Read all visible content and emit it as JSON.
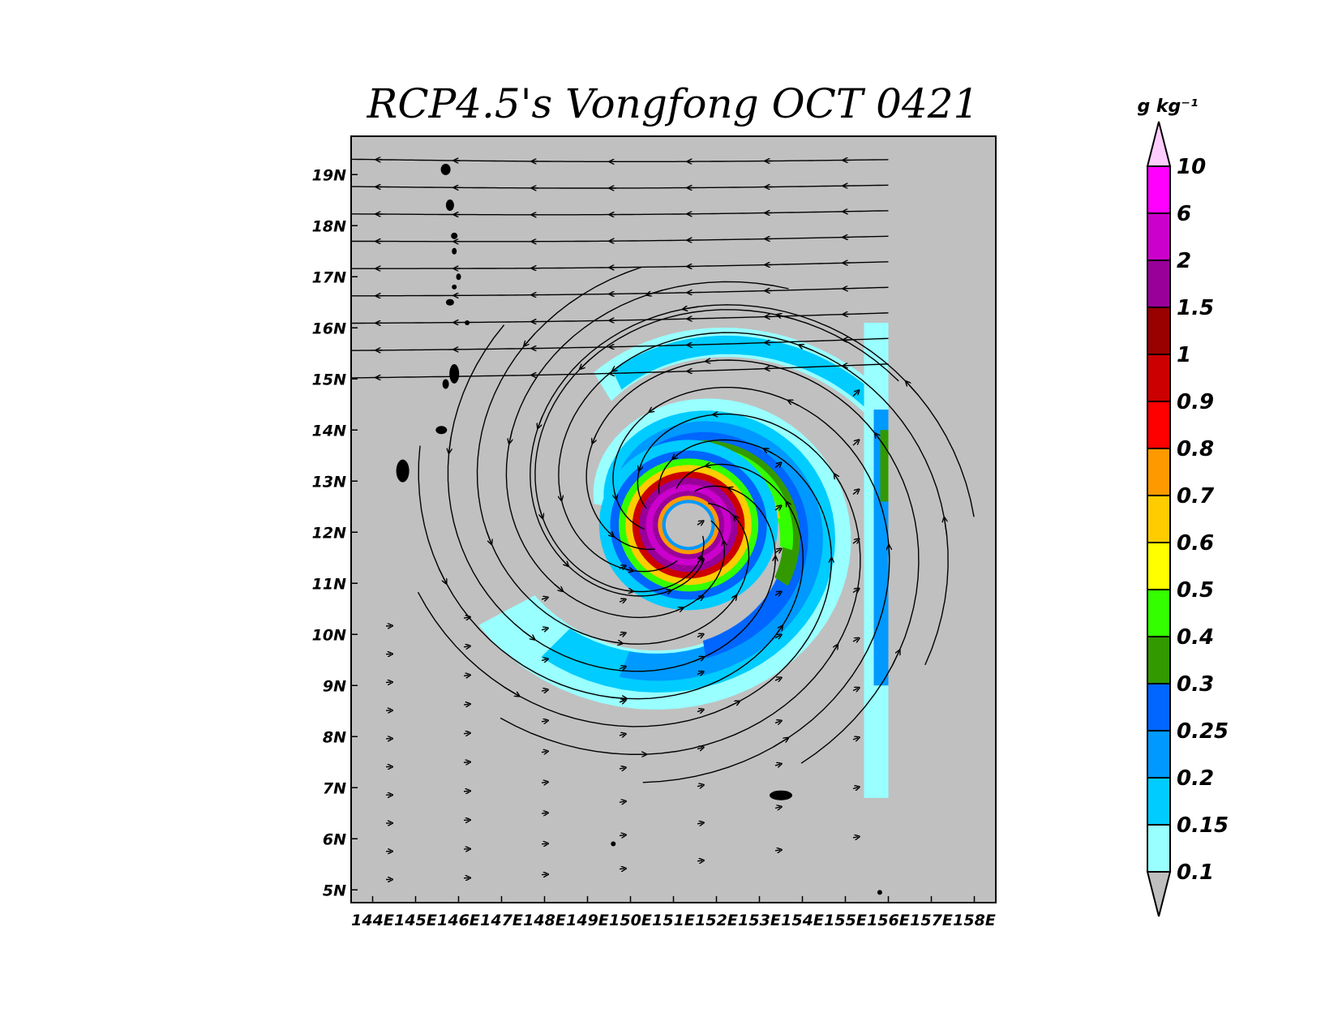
{
  "title": "RCP4.5's Vongfong OCT 0421",
  "units": "g kg⁻¹",
  "lon_ticks": [
    "144E",
    "145E",
    "146E",
    "147E",
    "148E",
    "149E",
    "150E",
    "151E",
    "152E",
    "153E",
    "154E",
    "155E",
    "156E",
    "157E",
    "158E"
  ],
  "lat_ticks": [
    "19N",
    "18N",
    "17N",
    "16N",
    "15N",
    "14N",
    "13N",
    "12N",
    "11N",
    "10N",
    "9N",
    "8N",
    "7N",
    "6N",
    "5N"
  ],
  "colorbar": {
    "labels": [
      "10",
      "6",
      "2",
      "1.5",
      "1",
      "0.9",
      "0.8",
      "0.7",
      "0.6",
      "0.5",
      "0.4",
      "0.3",
      "0.25",
      "0.2",
      "0.15",
      "0.1"
    ],
    "colors": [
      "#ff00ff",
      "#cc00cc",
      "#990099",
      "#990000",
      "#cc0000",
      "#ff0000",
      "#ff9900",
      "#ffcc00",
      "#ffff00",
      "#33ff00",
      "#339900",
      "#0066ff",
      "#0099ff",
      "#00ccff",
      "#99ffff"
    ],
    "top_color": "#ffccff",
    "bottom_color": "#bfbfbf"
  },
  "background_color": "#c0c0c0",
  "map_extent": {
    "lon_min": 143.5,
    "lon_max": 158.5,
    "lat_min": 4.75,
    "lat_max": 19.75
  },
  "cyclone_center": {
    "lon": 151.2,
    "lat": 12.3
  },
  "data_east_limit_lon": 156
}
